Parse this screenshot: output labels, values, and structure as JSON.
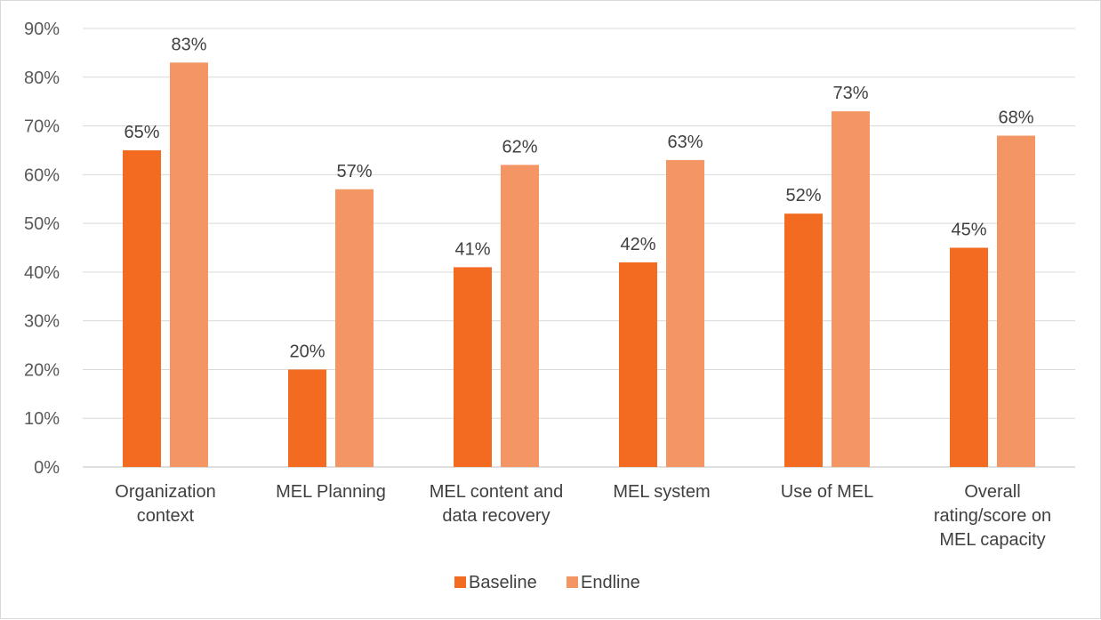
{
  "chart_data": {
    "type": "bar",
    "categories": [
      [
        "Organization",
        "context"
      ],
      [
        "MEL Planning"
      ],
      [
        "MEL content and",
        "data recovery"
      ],
      [
        "MEL system"
      ],
      [
        "Use of MEL"
      ],
      [
        "Overall",
        "rating/score on",
        "MEL capacity"
      ]
    ],
    "series": [
      {
        "name": "Baseline",
        "color": "#f26b21",
        "values": [
          65,
          20,
          41,
          42,
          52,
          45
        ],
        "labels": [
          "65%",
          "20%",
          "41%",
          "42%",
          "52%",
          "45%"
        ]
      },
      {
        "name": "Endline",
        "color": "#f49564",
        "values": [
          83,
          57,
          62,
          63,
          73,
          68
        ],
        "labels": [
          "83%",
          "57%",
          "62%",
          "63%",
          "73%",
          "68%"
        ]
      }
    ],
    "ylim": [
      0,
      90
    ],
    "yticks": [
      0,
      10,
      20,
      30,
      40,
      50,
      60,
      70,
      80,
      90
    ],
    "ytick_labels": [
      "0%",
      "10%",
      "20%",
      "30%",
      "40%",
      "50%",
      "60%",
      "70%",
      "80%",
      "90%"
    ],
    "grid": true,
    "legend": "bottom"
  }
}
